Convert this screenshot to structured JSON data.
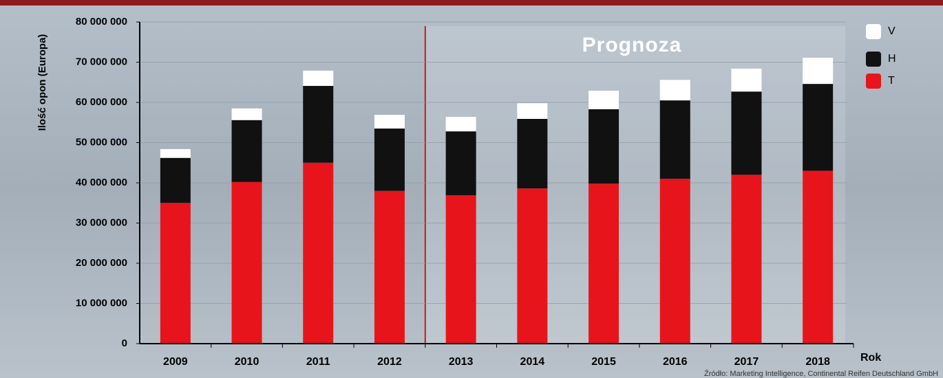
{
  "chart_data": {
    "type": "stacked-bar",
    "y_label": "Ilość opon (Europa)",
    "x_label": "Rok",
    "annotation": "Prognoza",
    "source": "Źródło: Marketing Intelligence, Continental Reifen Deutschland GmbH",
    "categories": [
      "2009",
      "2010",
      "2011",
      "2012",
      "2013",
      "2014",
      "2015",
      "2016",
      "2017",
      "2018"
    ],
    "series": [
      {
        "name": "T",
        "color": "#e8141c",
        "values": [
          35000000,
          40200000,
          45000000,
          38000000,
          36900000,
          38600000,
          39800000,
          41000000,
          42000000,
          43000000
        ]
      },
      {
        "name": "H",
        "color": "#111111",
        "values": [
          11200000,
          15400000,
          19100000,
          15500000,
          15900000,
          17300000,
          18500000,
          19500000,
          20700000,
          21600000
        ]
      },
      {
        "name": "V",
        "color": "#ffffff",
        "values": [
          2200000,
          2900000,
          3800000,
          3400000,
          3600000,
          3900000,
          4600000,
          5100000,
          5700000,
          6500000
        ]
      }
    ],
    "ylim": [
      0,
      80000000
    ],
    "yticks": [
      0,
      {
        "value": 10000000,
        "label": "10 000 000"
      },
      {
        "value": 20000000,
        "label": "20 000 000"
      },
      {
        "value": 30000000,
        "label": "30 000 000"
      },
      {
        "value": 40000000,
        "label": "40 000 000"
      },
      {
        "value": 50000000,
        "label": "50 000 000"
      },
      {
        "value": 60000000,
        "label": "60 000 000"
      },
      {
        "value": 70000000,
        "label": "70 000 000"
      },
      {
        "value": 80000000,
        "label": "80 000 000"
      }
    ],
    "grid": true,
    "legend": "top-right"
  }
}
